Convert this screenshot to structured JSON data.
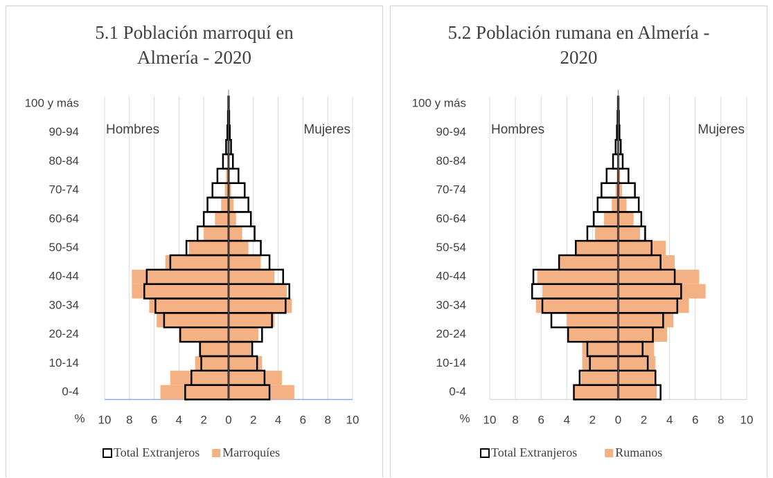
{
  "chart_data": [
    {
      "type": "pyramid",
      "title": "5.1 Población marroquí en Almería - 2020",
      "side_labels": [
        "Hombres",
        "Mujeres"
      ],
      "xlabel": "%",
      "categories": [
        "0-4",
        null,
        "10-14",
        null,
        "20-24",
        null,
        "30-34",
        null,
        "40-44",
        null,
        "50-54",
        null,
        "60-64",
        null,
        "70-74",
        null,
        "80-84",
        null,
        "90-94",
        null,
        "100  y más"
      ],
      "xlim": [
        -10,
        10
      ],
      "xticks": [
        {
          "value": -10,
          "label": "10"
        },
        {
          "value": -8,
          "label": "8"
        },
        {
          "value": -6,
          "label": "6"
        },
        {
          "value": -4,
          "label": "4"
        },
        {
          "value": -2,
          "label": "2"
        },
        0,
        2,
        4,
        6,
        8,
        10
      ],
      "grid": true,
      "series": [
        {
          "name": "Total Extranjeros",
          "color": "#000000",
          "style": "outline",
          "men": [
            3.5,
            3.0,
            2.2,
            2.3,
            3.9,
            5.2,
            5.9,
            6.8,
            6.6,
            4.7,
            3.4,
            2.5,
            2.0,
            1.7,
            1.3,
            0.9,
            0.45,
            0.2,
            0.1,
            0.05,
            0.02
          ],
          "women": [
            3.3,
            2.9,
            2.3,
            1.9,
            2.7,
            3.5,
            4.6,
            4.9,
            4.4,
            3.3,
            2.6,
            2.1,
            1.8,
            1.6,
            1.3,
            0.8,
            0.35,
            0.2,
            0.1,
            0.05,
            0.02
          ]
        },
        {
          "name": "Marroquíes",
          "color": "#f4b183",
          "style": "fill",
          "men": [
            5.5,
            4.7,
            2.7,
            2.4,
            4.0,
            5.8,
            6.4,
            7.8,
            7.8,
            5.1,
            3.2,
            2.0,
            1.1,
            0.6,
            0.3,
            0.2,
            0.1,
            0.05,
            0,
            0,
            0
          ],
          "women": [
            5.3,
            4.3,
            2.7,
            1.8,
            2.4,
            3.7,
            5.1,
            4.7,
            3.7,
            2.6,
            1.6,
            1.1,
            0.6,
            0.4,
            0.2,
            0.1,
            0.05,
            0,
            0,
            0,
            0
          ]
        }
      ]
    },
    {
      "type": "pyramid",
      "title": "5.2 Población rumana en Almería - 2020",
      "side_labels": [
        "Hombres",
        "Mujeres"
      ],
      "xlabel": "%",
      "categories": [
        "0-4",
        null,
        "10-14",
        null,
        "20-24",
        null,
        "30-34",
        null,
        "40-44",
        null,
        "50-54",
        null,
        "60-64",
        null,
        "70-74",
        null,
        "80-84",
        null,
        "90-94",
        null,
        "100  y más"
      ],
      "xlim": [
        -10,
        10
      ],
      "xticks": [
        {
          "value": -10,
          "label": "10"
        },
        {
          "value": -8,
          "label": "8"
        },
        {
          "value": -6,
          "label": "6"
        },
        {
          "value": -4,
          "label": "4"
        },
        {
          "value": -2,
          "label": "2"
        },
        0,
        2,
        4,
        6,
        8,
        10
      ],
      "grid": true,
      "series": [
        {
          "name": "Total Extranjeros",
          "color": "#000000",
          "style": "outline",
          "men": [
            3.45,
            3.0,
            2.2,
            2.4,
            3.9,
            5.2,
            5.9,
            6.7,
            6.6,
            4.6,
            3.3,
            2.4,
            1.9,
            1.6,
            1.3,
            0.9,
            0.4,
            0.2,
            0.1,
            0.05,
            0.02
          ],
          "women": [
            3.3,
            2.9,
            2.3,
            1.9,
            2.7,
            3.5,
            4.6,
            4.9,
            4.4,
            3.3,
            2.6,
            2.1,
            1.8,
            1.6,
            1.3,
            0.8,
            0.35,
            0.2,
            0.1,
            0.05,
            0.02
          ]
        },
        {
          "name": "Rumanos",
          "color": "#f4b183",
          "style": "fill",
          "men": [
            3.4,
            2.9,
            2.8,
            2.8,
            3.9,
            4.0,
            6.4,
            5.9,
            6.3,
            4.6,
            3.3,
            1.8,
            1.1,
            0.5,
            0.2,
            0.1,
            0,
            0,
            0,
            0,
            0
          ],
          "women": [
            3.0,
            2.9,
            2.9,
            2.8,
            3.8,
            4.3,
            5.5,
            6.8,
            6.3,
            4.4,
            3.7,
            1.7,
            1.2,
            0.65,
            0.3,
            0.15,
            0,
            0,
            0,
            0,
            0
          ]
        }
      ]
    }
  ]
}
